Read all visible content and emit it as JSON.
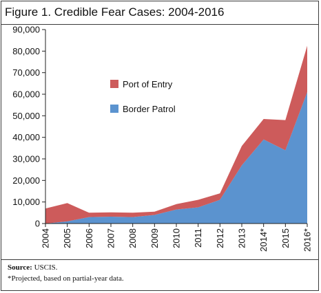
{
  "figure": {
    "title": "Figure 1. Credible Fear Cases: 2004-2016",
    "source_label": "Source:",
    "source_value": " USCIS.",
    "note": "*Projected, based on partial-year data."
  },
  "chart_data": {
    "type": "area",
    "stacked": true,
    "title": "Figure 1. Credible Fear Cases: 2004-2016",
    "xlabel": "",
    "ylabel": "",
    "categories": [
      "2004",
      "2005",
      "2006",
      "2007",
      "2008",
      "2009",
      "2010",
      "2011",
      "2012",
      "2013",
      "2014*",
      "2015",
      "2016*"
    ],
    "series": [
      {
        "name": "Border Patrol",
        "color": "#5b93cf",
        "values": [
          0,
          1000,
          3000,
          3200,
          3000,
          4000,
          6500,
          7500,
          11000,
          27000,
          39000,
          34000,
          61000
        ]
      },
      {
        "name": "Port of Entry",
        "color": "#cd5b5b",
        "values": [
          7000,
          8500,
          2000,
          2000,
          2000,
          1500,
          2500,
          3500,
          3000,
          9000,
          9500,
          14000,
          21500
        ]
      }
    ],
    "ylim": [
      0,
      90000
    ],
    "yticks": [
      "0",
      "10,000",
      "20,000",
      "30,000",
      "40,000",
      "50,000",
      "60,000",
      "70,000",
      "80,000",
      "90,000"
    ],
    "legend_order": [
      "Port of Entry",
      "Border Patrol"
    ],
    "legend_position": "upper-left",
    "grid": false
  }
}
